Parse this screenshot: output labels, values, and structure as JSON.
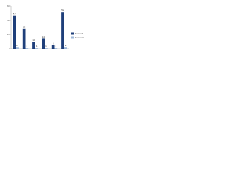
{
  "chart_data": {
    "type": "bar",
    "categories": [
      null,
      null,
      null,
      null,
      null,
      null
    ],
    "series": [
      {
        "name": "Series 1",
        "color": "#1f3f7a",
        "values": [
          47,
          28,
          10,
          14,
          5,
          52
        ]
      },
      {
        "name": "Series 2",
        "color": "#9fb8d9",
        "values": [
          2,
          1,
          1,
          1,
          1,
          2
        ]
      }
    ],
    "ylim": [
      0,
      60
    ],
    "yticks": [
      0,
      20,
      40,
      60
    ],
    "grid": false,
    "legend": "right"
  }
}
